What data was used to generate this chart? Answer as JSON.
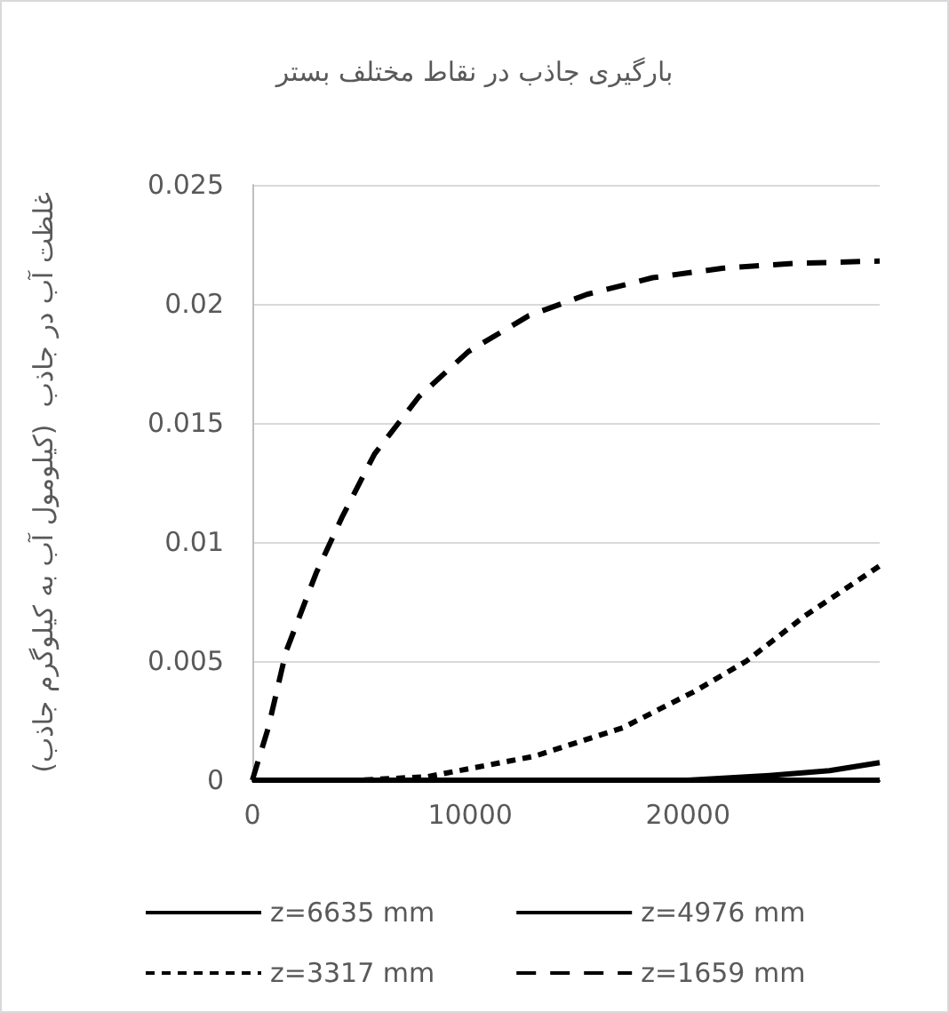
{
  "chart_data": {
    "type": "line",
    "title": "بارگیری جاذب در نقاط مختلف بستر",
    "ylabel": "غلظت آب در جاذب  (کیلومول آب به کیلوگرم جاذب)",
    "xlim": [
      0,
      28800
    ],
    "xticks": [
      0,
      10000,
      20000
    ],
    "ylim": [
      0,
      0.025
    ],
    "yticks": [
      0,
      0.005,
      0.01,
      0.015,
      0.02,
      0.025
    ],
    "grid": "y",
    "legend": "bottom",
    "marker": "none",
    "series": [
      {
        "name": "z=6635 mm",
        "color": "#000000",
        "line_style": "solid",
        "x": [
          0,
          10000,
          20000,
          28800
        ],
        "values": [
          0,
          0,
          0,
          0
        ]
      },
      {
        "name": "z=4976 mm",
        "color": "#000000",
        "line_style": "solid",
        "x": [
          0,
          10000,
          20000,
          23740,
          26500,
          28800
        ],
        "values": [
          0,
          0,
          0,
          0.0002,
          0.0004,
          0.00074
        ]
      },
      {
        "name": "z=3317 mm",
        "color": "#000000",
        "line_style": "dotted",
        "x": [
          0,
          5000,
          8050,
          12930,
          17000,
          20240,
          22680,
          25370,
          28800
        ],
        "values": [
          0,
          0,
          0.00015,
          0.001,
          0.0022,
          0.0037,
          0.005,
          0.0069,
          0.009
        ]
      },
      {
        "name": "z=1659 mm",
        "color": "#000000",
        "line_style": "dashed",
        "x": [
          0,
          730,
          1545,
          2930,
          4146,
          5610,
          7642,
          9919,
          12683,
          15366,
          18374,
          21626,
          24878,
          28800
        ],
        "values": [
          0,
          0.0022,
          0.0054,
          0.0087,
          0.0111,
          0.0137,
          0.0161,
          0.018,
          0.0195,
          0.0204,
          0.0211,
          0.0215,
          0.0217,
          0.0218
        ]
      }
    ]
  }
}
